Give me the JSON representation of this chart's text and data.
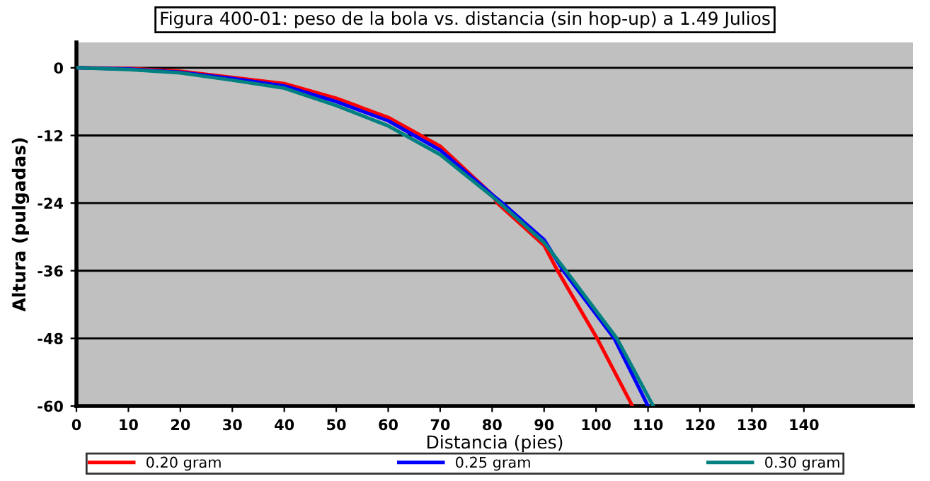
{
  "chart_data": {
    "type": "line",
    "title": "Figura 400-01: peso de la bola vs. distancia (sin hop-up) a 1.49 Julios",
    "xlabel": "Distancia (pies)",
    "ylabel": "Altura (pulgadas)",
    "series": [
      {
        "name": "0.20 gram",
        "color": "#ff0000",
        "x": [
          0,
          10,
          20,
          30,
          40,
          50,
          60,
          70,
          80,
          81,
          90,
          92.6,
          100.2,
          107
        ],
        "values": [
          0,
          -0.1,
          -0.6,
          -1.7,
          -2.8,
          -5.4,
          -8.8,
          -13.9,
          -22.5,
          -24,
          -31.5,
          -36,
          -48,
          -60
        ]
      },
      {
        "name": "0.25 gram",
        "color": "#0000ff",
        "x": [
          0,
          10,
          20,
          30,
          40,
          50,
          60,
          70,
          80,
          82,
          90,
          93.7,
          103.5,
          110
        ],
        "values": [
          0,
          -0.2,
          -0.8,
          -1.9,
          -3.2,
          -6,
          -9.4,
          -14.6,
          -22.5,
          -24,
          -30.5,
          -36,
          -48,
          -60
        ]
      },
      {
        "name": "0.30 gram",
        "color": "#008080",
        "x": [
          0,
          10,
          20,
          30,
          40,
          50,
          60,
          70,
          80,
          81.5,
          90,
          94.2,
          104,
          111
        ],
        "values": [
          0,
          -0.3,
          -0.9,
          -2.2,
          -3.6,
          -6.7,
          -10.3,
          -15.4,
          -22.8,
          -24,
          -31,
          -36,
          -48,
          -60
        ]
      }
    ],
    "xlim": [
      0,
      161
    ],
    "xticks": [
      0,
      10,
      20,
      30,
      40,
      50,
      60,
      70,
      80,
      90,
      100,
      110,
      120,
      130,
      140
    ],
    "ylim": [
      -60,
      4.5
    ],
    "yticks": [
      -60,
      -48,
      -36,
      -24,
      -12,
      0
    ],
    "grid": "y",
    "legend": "bottom",
    "marker": "none",
    "line_style": "solid"
  }
}
